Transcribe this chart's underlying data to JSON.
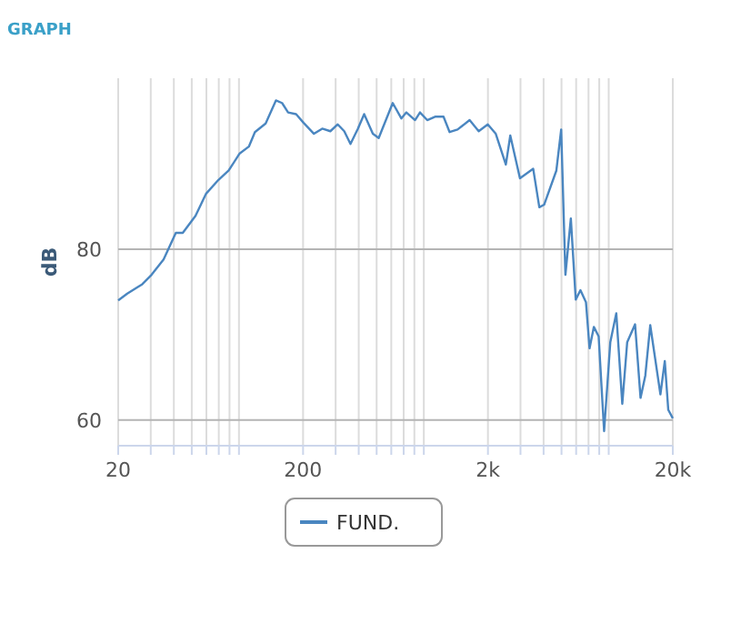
{
  "chart_data": {
    "type": "line",
    "title": "GRAPH",
    "ylabel": "dB",
    "xlim": [
      20,
      20000
    ],
    "ylim": [
      57,
      100
    ],
    "xticks": [
      20,
      {
        "value": 30,
        "label": null
      },
      {
        "value": 40,
        "label": null
      },
      {
        "value": 50,
        "label": null
      },
      {
        "value": 60,
        "label": null
      },
      {
        "value": 70,
        "label": null
      },
      {
        "value": 80,
        "label": null
      },
      {
        "value": 90,
        "label": null
      },
      200,
      {
        "value": 300,
        "label": null
      },
      {
        "value": 400,
        "label": null
      },
      {
        "value": 500,
        "label": null
      },
      {
        "value": 600,
        "label": null
      },
      {
        "value": 700,
        "label": null
      },
      {
        "value": 800,
        "label": null
      },
      {
        "value": 900,
        "label": null
      },
      {
        "value": 2000,
        "label": "2k"
      },
      {
        "value": 3000,
        "label": null
      },
      {
        "value": 4000,
        "label": null
      },
      {
        "value": 5000,
        "label": null
      },
      {
        "value": 6000,
        "label": null
      },
      {
        "value": 7000,
        "label": null
      },
      {
        "value": 8000,
        "label": null
      },
      {
        "value": 9000,
        "label": null
      },
      {
        "value": 20000,
        "label": "20k"
      }
    ],
    "yticks": [
      60,
      80
    ],
    "log": "x",
    "grid": true,
    "legend": "bottom",
    "marker": "none",
    "line_style": "solid",
    "series": [
      {
        "name": "FUND.",
        "color": "#4a86c0",
        "x": [
          20,
          22.4,
          25.2,
          27,
          30.3,
          35.2,
          41,
          44.7,
          52.4,
          59.8,
          69.7,
          79.2,
          90.8,
          101.8,
          109.8,
          125.5,
          142.6,
          154,
          166,
          183.4,
          201,
          229,
          254,
          281,
          308,
          334,
          361,
          396,
          428,
          477,
          513,
          611,
          680,
          724,
          807,
          858,
          939,
          1035,
          1150,
          1241,
          1370,
          1592,
          1783,
          1996,
          2205,
          2500,
          2642,
          2980,
          3515,
          3793,
          4026,
          4690,
          4980,
          5250,
          5617,
          5970,
          6330,
          6780,
          7090,
          7480,
          7940,
          8500,
          9180,
          9890,
          10660,
          11330,
          12500,
          13380,
          14200,
          15100,
          17140,
          18100,
          18900,
          20000
        ],
        "values": [
          74.0,
          74.8,
          75.5,
          75.9,
          77.0,
          78.8,
          81.9,
          81.9,
          83.9,
          86.5,
          88.1,
          89.2,
          91.2,
          92.0,
          93.7,
          94.7,
          97.4,
          97.1,
          96.0,
          95.8,
          94.8,
          93.5,
          94.1,
          93.8,
          94.6,
          93.8,
          92.3,
          94.1,
          95.8,
          93.5,
          93.0,
          97.1,
          95.3,
          96.0,
          95.1,
          96.0,
          95.1,
          95.5,
          95.5,
          93.7,
          94.0,
          95.1,
          93.8,
          94.6,
          93.5,
          89.9,
          93.3,
          88.3,
          89.4,
          84.9,
          85.2,
          89.2,
          94.0,
          77.0,
          83.6,
          74.1,
          75.2,
          73.8,
          68.4,
          70.9,
          69.8,
          58.7,
          69.1,
          72.5,
          61.9,
          69.1,
          71.2,
          62.6,
          65.2,
          71.1,
          63.0,
          66.9,
          61.2,
          60.2
        ]
      }
    ]
  }
}
